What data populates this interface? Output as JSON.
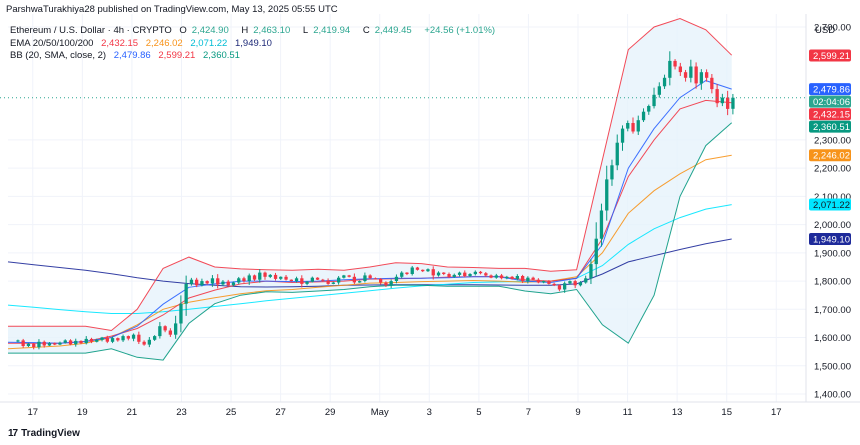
{
  "header": {
    "attribution": "ParshwaTurakhiya28 published on TradingView.com, May 13, 2025 05:55 UTC"
  },
  "legend": {
    "symbol": "Ethereum / U.S. Dollar · 4h · CRYPTO",
    "o_label": "O",
    "o": "2,424.90",
    "h_label": "H",
    "h": "2,463.10",
    "l_label": "L",
    "l": "2,419.94",
    "c_label": "C",
    "c": "2,449.45",
    "change": "+24.56 (+1.01%)",
    "ema_label": "EMA 20/50/100/200",
    "ema20": "2,432.15",
    "ema50": "2,246.02",
    "ema100": "2,071.22",
    "ema200": "1,949.10",
    "bb_label": "BB (20, SMA, close, 2)",
    "bb_basis": "2,479.86",
    "bb_upper": "2,599.21",
    "bb_lower": "2,360.51"
  },
  "footer": {
    "brand": "TradingView"
  },
  "colors": {
    "up": "#089981",
    "down": "#f23645",
    "bb_upper": "#f23645",
    "bb_lower": "#089981",
    "bb_basis": "#2962ff",
    "bb_fill": "#e6f3fb",
    "ema20": "#f23645",
    "ema50": "#f7931a",
    "ema100": "#00e5ff",
    "ema200": "#1e2a9a",
    "grid": "#f0f3fa",
    "axis_text": "#131722",
    "last_line": "#2ca690"
  },
  "chart_data": {
    "type": "candlestick",
    "title": "Ethereum / U.S. Dollar · 4h · CRYPTO",
    "currency": "USD",
    "ylim": [
      1400,
      2800
    ],
    "y_ticks": [
      "2,700.00",
      "2,300.00",
      "2,200.00",
      "2,100.00",
      "2,000.00",
      "1,900.00",
      "1,800.00",
      "1,700.00",
      "1,600.00",
      "1,500.00",
      "1,400.00"
    ],
    "y_tick_values": [
      2700,
      2300,
      2200,
      2100,
      2000,
      1900,
      1800,
      1700,
      1600,
      1500,
      1400
    ],
    "x_ticks": [
      "17",
      "19",
      "21",
      "23",
      "25",
      "27",
      "29",
      "May",
      "3",
      "5",
      "7",
      "9",
      "11",
      "13",
      "15",
      "17"
    ],
    "x_tick_day_index": [
      0,
      2,
      4,
      6,
      8,
      10,
      12,
      14,
      16,
      18,
      20,
      22,
      24,
      26,
      28,
      30
    ],
    "x_range_days": [
      -1,
      31.2
    ],
    "price_labels": [
      {
        "text": "2,599.21",
        "value": 2599.21,
        "color": "#f23645",
        "text_color": "#ffffff"
      },
      {
        "text": "2,479.86",
        "value": 2479.86,
        "color": "#2962ff",
        "text_color": "#ffffff"
      },
      {
        "text": "02:04:06",
        "value": 2449.45,
        "color": "#2ca690",
        "text_color": "#ffffff"
      },
      {
        "text": "2,432.15",
        "value": 2432.15,
        "color": "#f23645",
        "text_color": "#ffffff"
      },
      {
        "text": "2,360.51",
        "value": 2360.51,
        "color": "#089981",
        "text_color": "#ffffff"
      },
      {
        "text": "2,246.02",
        "value": 2246.02,
        "color": "#f7931a",
        "text_color": "#ffffff"
      },
      {
        "text": "2,071.22",
        "value": 2071.22,
        "color": "#00e5ff",
        "text_color": "#131722"
      },
      {
        "text": "1,949.10",
        "value": 1949.1,
        "color": "#1e2a9a",
        "text_color": "#ffffff"
      }
    ],
    "closes": [
      1590,
      1570,
      1578,
      1566,
      1585,
      1572,
      1580,
      1575,
      1582,
      1590,
      1576,
      1588,
      1580,
      1595,
      1585,
      1592,
      1600,
      1585,
      1598,
      1590,
      1605,
      1596,
      1610,
      1585,
      1575,
      1592,
      1605,
      1640,
      1625,
      1610,
      1650,
      1720,
      1790,
      1805,
      1785,
      1800,
      1792,
      1810,
      1788,
      1798,
      1785,
      1795,
      1810,
      1800,
      1820,
      1805,
      1830,
      1815,
      1822,
      1808,
      1815,
      1805,
      1800,
      1810,
      1790,
      1798,
      1812,
      1805,
      1802,
      1790,
      1795,
      1812,
      1820,
      1815,
      1795,
      1800,
      1820,
      1810,
      1808,
      1795,
      1785,
      1800,
      1815,
      1830,
      1825,
      1848,
      1840,
      1835,
      1842,
      1820,
      1830,
      1825,
      1815,
      1822,
      1830,
      1818,
      1825,
      1833,
      1828,
      1820,
      1812,
      1820,
      1810,
      1815,
      1808,
      1818,
      1800,
      1812,
      1805,
      1795,
      1800,
      1790,
      1785,
      1770,
      1792,
      1800,
      1785,
      1795,
      1810,
      1860,
      1950,
      2050,
      2160,
      2210,
      2290,
      2340,
      2360,
      2330,
      2370,
      2400,
      2420,
      2460,
      2490,
      2520,
      2580,
      2560,
      2540,
      2520,
      2560,
      2500,
      2540,
      2520,
      2480,
      2430,
      2450,
      2410,
      2449.45
    ],
    "ema20": [
      1580,
      1580,
      1580,
      1586,
      1605,
      1632,
      1680,
      1740,
      1768,
      1790,
      1800,
      1795,
      1797,
      1800,
      1807,
      1808,
      1810,
      1814,
      1816,
      1816,
      1805,
      1800,
      1810,
      1950,
      2170,
      2300,
      2410,
      2440,
      2432
    ],
    "ema50": [
      1560,
      1565,
      1570,
      1580,
      1600,
      1645,
      1700,
      1725,
      1741,
      1755,
      1766,
      1770,
      1778,
      1785,
      1793,
      1795,
      1798,
      1800,
      1802,
      1800,
      1796,
      1800,
      1815,
      1900,
      2040,
      2120,
      2180,
      2230,
      2246
    ],
    "ema100": [
      1715,
      1707,
      1699,
      1691,
      1685,
      1685,
      1691,
      1700,
      1710,
      1720,
      1730,
      1739,
      1748,
      1757,
      1766,
      1775,
      1783,
      1789,
      1795,
      1797,
      1799,
      1800,
      1810,
      1855,
      1930,
      1985,
      2025,
      2055,
      2071
    ],
    "ema200": [
      1868,
      1858,
      1848,
      1838,
      1826,
      1812,
      1800,
      1791,
      1785,
      1780,
      1779,
      1780,
      1782,
      1785,
      1786,
      1787,
      1787,
      1787,
      1787,
      1786,
      1785,
      1785,
      1790,
      1825,
      1868,
      1890,
      1912,
      1932,
      1949
    ],
    "bb_basis": [
      1583,
      1582,
      1580,
      1586,
      1600,
      1640,
      1718,
      1778,
      1790,
      1800,
      1800,
      1798,
      1800,
      1805,
      1808,
      1810,
      1810,
      1812,
      1815,
      1815,
      1800,
      1795,
      1810,
      1930,
      2200,
      2340,
      2450,
      2510,
      2480
    ],
    "bb_upper": [
      1640,
      1640,
      1640,
      1640,
      1625,
      1700,
      1845,
      1885,
      1850,
      1843,
      1840,
      1838,
      1842,
      1838,
      1850,
      1865,
      1862,
      1850,
      1848,
      1845,
      1845,
      1835,
      1840,
      2230,
      2620,
      2700,
      2730,
      2690,
      2600
    ],
    "bb_lower": [
      1545,
      1545,
      1545,
      1545,
      1560,
      1530,
      1520,
      1650,
      1720,
      1750,
      1762,
      1760,
      1765,
      1770,
      1780,
      1785,
      1785,
      1782,
      1782,
      1782,
      1765,
      1755,
      1770,
      1645,
      1580,
      1750,
      2100,
      2280,
      2361
    ]
  }
}
